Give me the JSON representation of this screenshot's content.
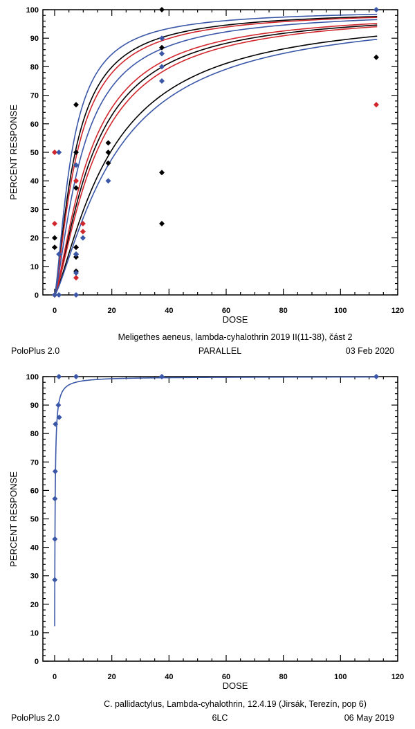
{
  "chart_data": [
    {
      "type": "scatter",
      "title": "Meligethes aeneus, lambda-cyhalothrin 2019 II(11-38), část 2",
      "footer": {
        "left": "PoloPlus 2.0",
        "center": "PARALLEL",
        "right": "03 Feb 2020"
      },
      "xlabel": "DOSE",
      "ylabel": "PERCENT RESPONSE",
      "xlim": [
        0,
        120
      ],
      "ylim": [
        0,
        100
      ],
      "xticks": [
        0,
        20,
        40,
        60,
        80,
        100,
        120
      ],
      "yticks": [
        0,
        10,
        20,
        30,
        40,
        50,
        60,
        70,
        80,
        90,
        100
      ],
      "grid": false,
      "series": [
        {
          "name": "black",
          "color": "#000000",
          "points": [
            [
              0,
              0
            ],
            [
              0,
              20
            ],
            [
              0,
              16.7
            ],
            [
              7.5,
              66.7
            ],
            [
              7.5,
              50
            ],
            [
              7.5,
              37.5
            ],
            [
              7.5,
              16.7
            ],
            [
              7.5,
              14.3
            ],
            [
              7.5,
              13.3
            ],
            [
              7.5,
              8.3
            ],
            [
              18.75,
              53.3
            ],
            [
              18.75,
              50
            ],
            [
              18.75,
              46.2
            ],
            [
              37.5,
              100
            ],
            [
              37.5,
              86.7
            ],
            [
              37.5,
              42.9
            ],
            [
              37.5,
              25
            ],
            [
              112.5,
              83.3
            ]
          ],
          "curves": [
            {
              "lc50": 7.2,
              "slope": 1.35
            },
            {
              "lc50": 13.5,
              "slope": 1.35
            },
            {
              "lc50": 19.5,
              "slope": 1.3
            }
          ]
        },
        {
          "name": "red",
          "color": "#d0262c",
          "points": [
            [
              0,
              0
            ],
            [
              0,
              50
            ],
            [
              0,
              25
            ],
            [
              7.5,
              40
            ],
            [
              7.5,
              6
            ],
            [
              9.9,
              25
            ],
            [
              9.9,
              22.2
            ],
            [
              112.5,
              66.7
            ]
          ],
          "curves": [
            {
              "lc50": 7.9,
              "slope": 1.35
            },
            {
              "lc50": 12.4,
              "slope": 1.35
            },
            {
              "lc50": 14.6,
              "slope": 1.35
            }
          ]
        },
        {
          "name": "blue",
          "color": "#3a57a7",
          "points": [
            [
              0,
              0
            ],
            [
              1.5,
              0
            ],
            [
              1.5,
              50
            ],
            [
              1.5,
              14.3
            ],
            [
              7.5,
              45.5
            ],
            [
              7.5,
              14.3
            ],
            [
              7.5,
              7.7
            ],
            [
              7.5,
              0
            ],
            [
              9.9,
              20
            ],
            [
              18.75,
              40
            ],
            [
              37.5,
              90
            ],
            [
              37.5,
              84.6
            ],
            [
              37.5,
              80
            ],
            [
              37.5,
              75
            ],
            [
              112.5,
              100
            ]
          ],
          "curves": [
            {
              "lc50": 6.0,
              "slope": 1.4
            },
            {
              "lc50": 9.6,
              "slope": 1.35
            },
            {
              "lc50": 21.5,
              "slope": 1.3
            }
          ]
        }
      ]
    },
    {
      "type": "scatter",
      "title": "C. pallidactylus, Lambda-cyhalothrin, 12.4.19 (Jirsák, Terezín, pop 6)",
      "footer": {
        "left": "PoloPlus 2.0",
        "center": "6LC",
        "right": "06 May 2019"
      },
      "xlabel": "DOSE",
      "ylabel": "PERCENT RESPONSE",
      "xlim": [
        0,
        120
      ],
      "ylim": [
        0,
        100
      ],
      "xticks": [
        0,
        20,
        40,
        60,
        80,
        100,
        120
      ],
      "yticks": [
        0,
        10,
        20,
        30,
        40,
        50,
        60,
        70,
        80,
        90,
        100
      ],
      "grid": false,
      "series": [
        {
          "name": "blue",
          "color": "#3a57a7",
          "points": [
            [
              0.05,
              28.6
            ],
            [
              0.1,
              42.9
            ],
            [
              0.1,
              57.1
            ],
            [
              0.2,
              66.7
            ],
            [
              0.3,
              83.3
            ],
            [
              1.6,
              85.7
            ],
            [
              1.3,
              90
            ],
            [
              1.5,
              100
            ],
            [
              7.5,
              100
            ],
            [
              37.5,
              100
            ],
            [
              112.5,
              100
            ]
          ],
          "curves": [
            {
              "lc50": 0.15,
              "slope": 1.0,
              "xmin": 0.021
            }
          ]
        }
      ]
    }
  ]
}
